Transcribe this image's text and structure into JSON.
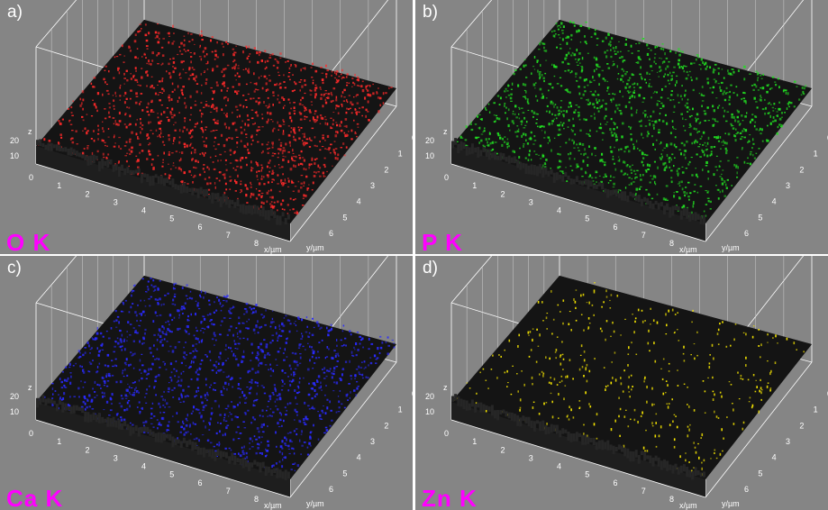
{
  "panels": [
    {
      "letter": "a)",
      "element": "O K",
      "color": "#ff2a2a"
    },
    {
      "letter": "b)",
      "element": "P K",
      "color": "#22dd22"
    },
    {
      "letter": "c)",
      "element": "Ca K",
      "color": "#2a2aff"
    },
    {
      "letter": "d)",
      "element": "Zn K",
      "color": "#ffee00"
    }
  ],
  "axes": {
    "x_label": "x/µm",
    "y_label": "y/µm",
    "z_label": "z",
    "x_ticks": [
      "0",
      "1",
      "2",
      "3",
      "4",
      "5",
      "6",
      "7",
      "8"
    ],
    "y_ticks": [
      "0",
      "1",
      "2",
      "3",
      "4",
      "5",
      "6"
    ],
    "z_ticks": [
      "10",
      "20"
    ]
  }
}
